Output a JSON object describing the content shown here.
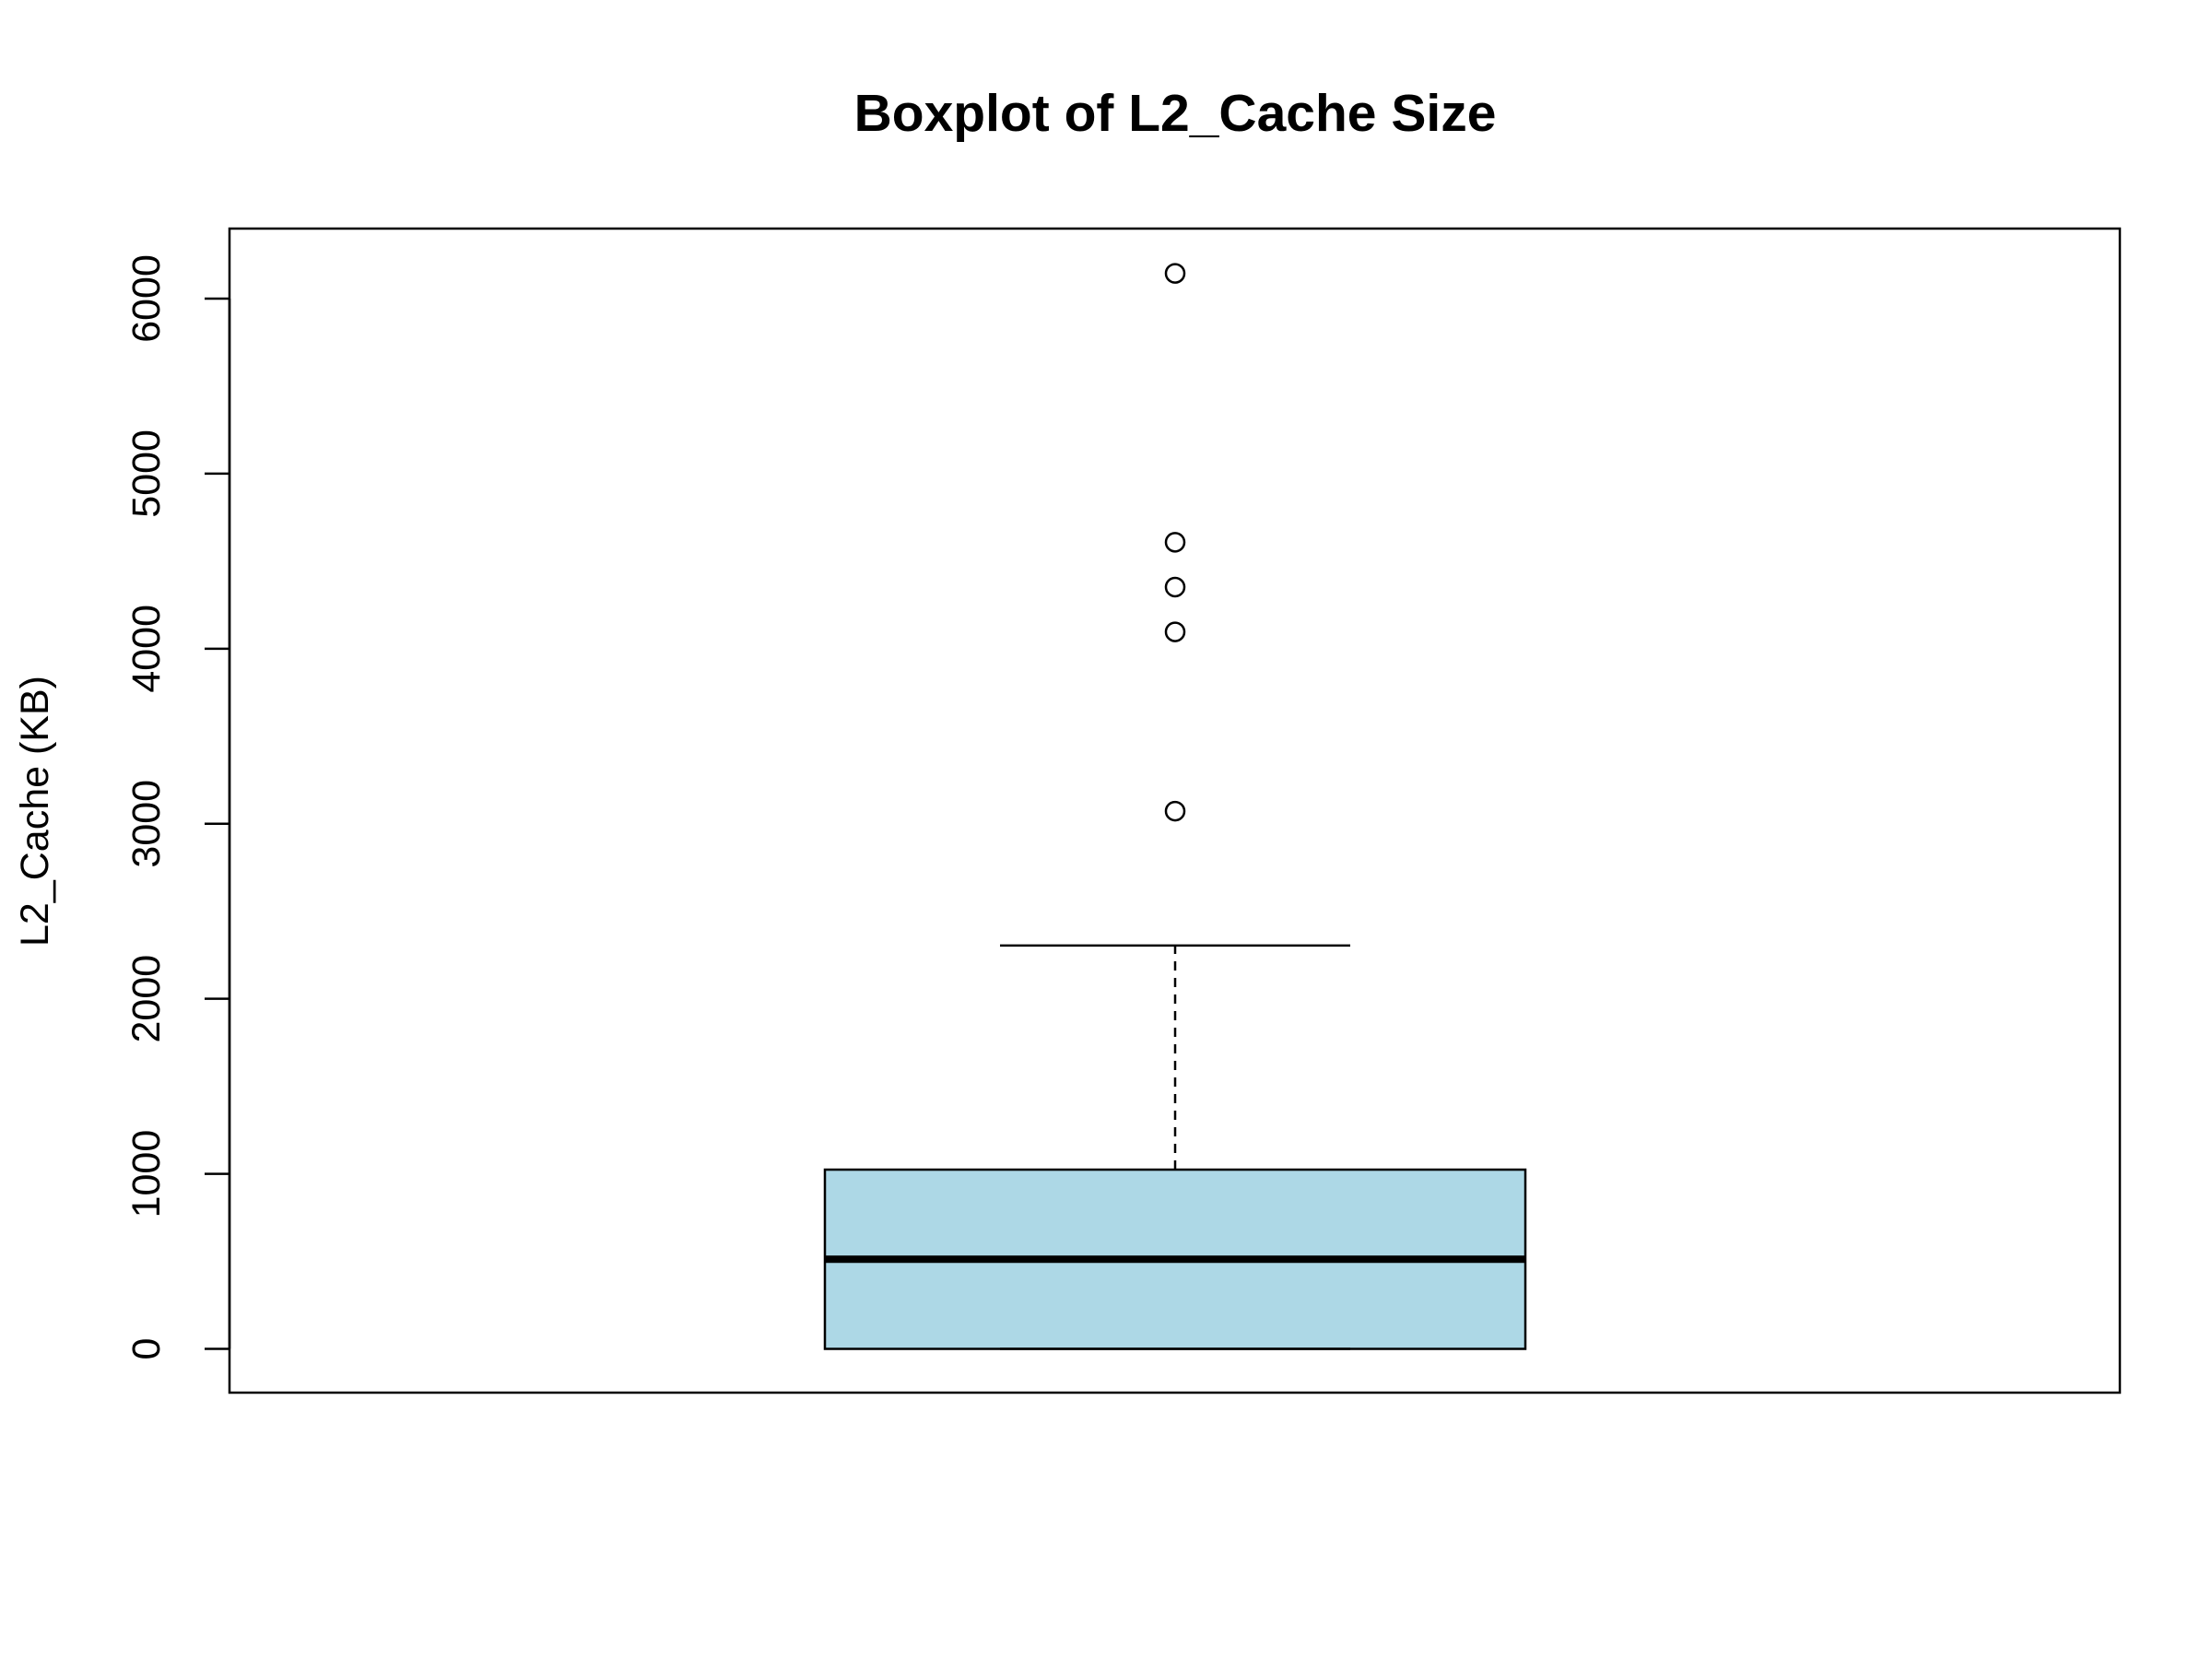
{
  "chart_data": {
    "type": "box",
    "title": "Boxplot of L2_Cache Size",
    "xlabel": "",
    "ylabel": "L2_Cache (KB)",
    "ylim": [
      -250,
      6400
    ],
    "yticks": [
      0,
      1000,
      2000,
      3000,
      4000,
      5000,
      6000
    ],
    "grid": false,
    "box_color": "#ADD8E6",
    "line_color": "#000000",
    "box": {
      "min": 0,
      "q1": 0,
      "median": 512,
      "q3": 1024,
      "whisker_high": 2304
    },
    "outliers": [
      3072,
      4096,
      4352,
      4608,
      6144
    ]
  }
}
